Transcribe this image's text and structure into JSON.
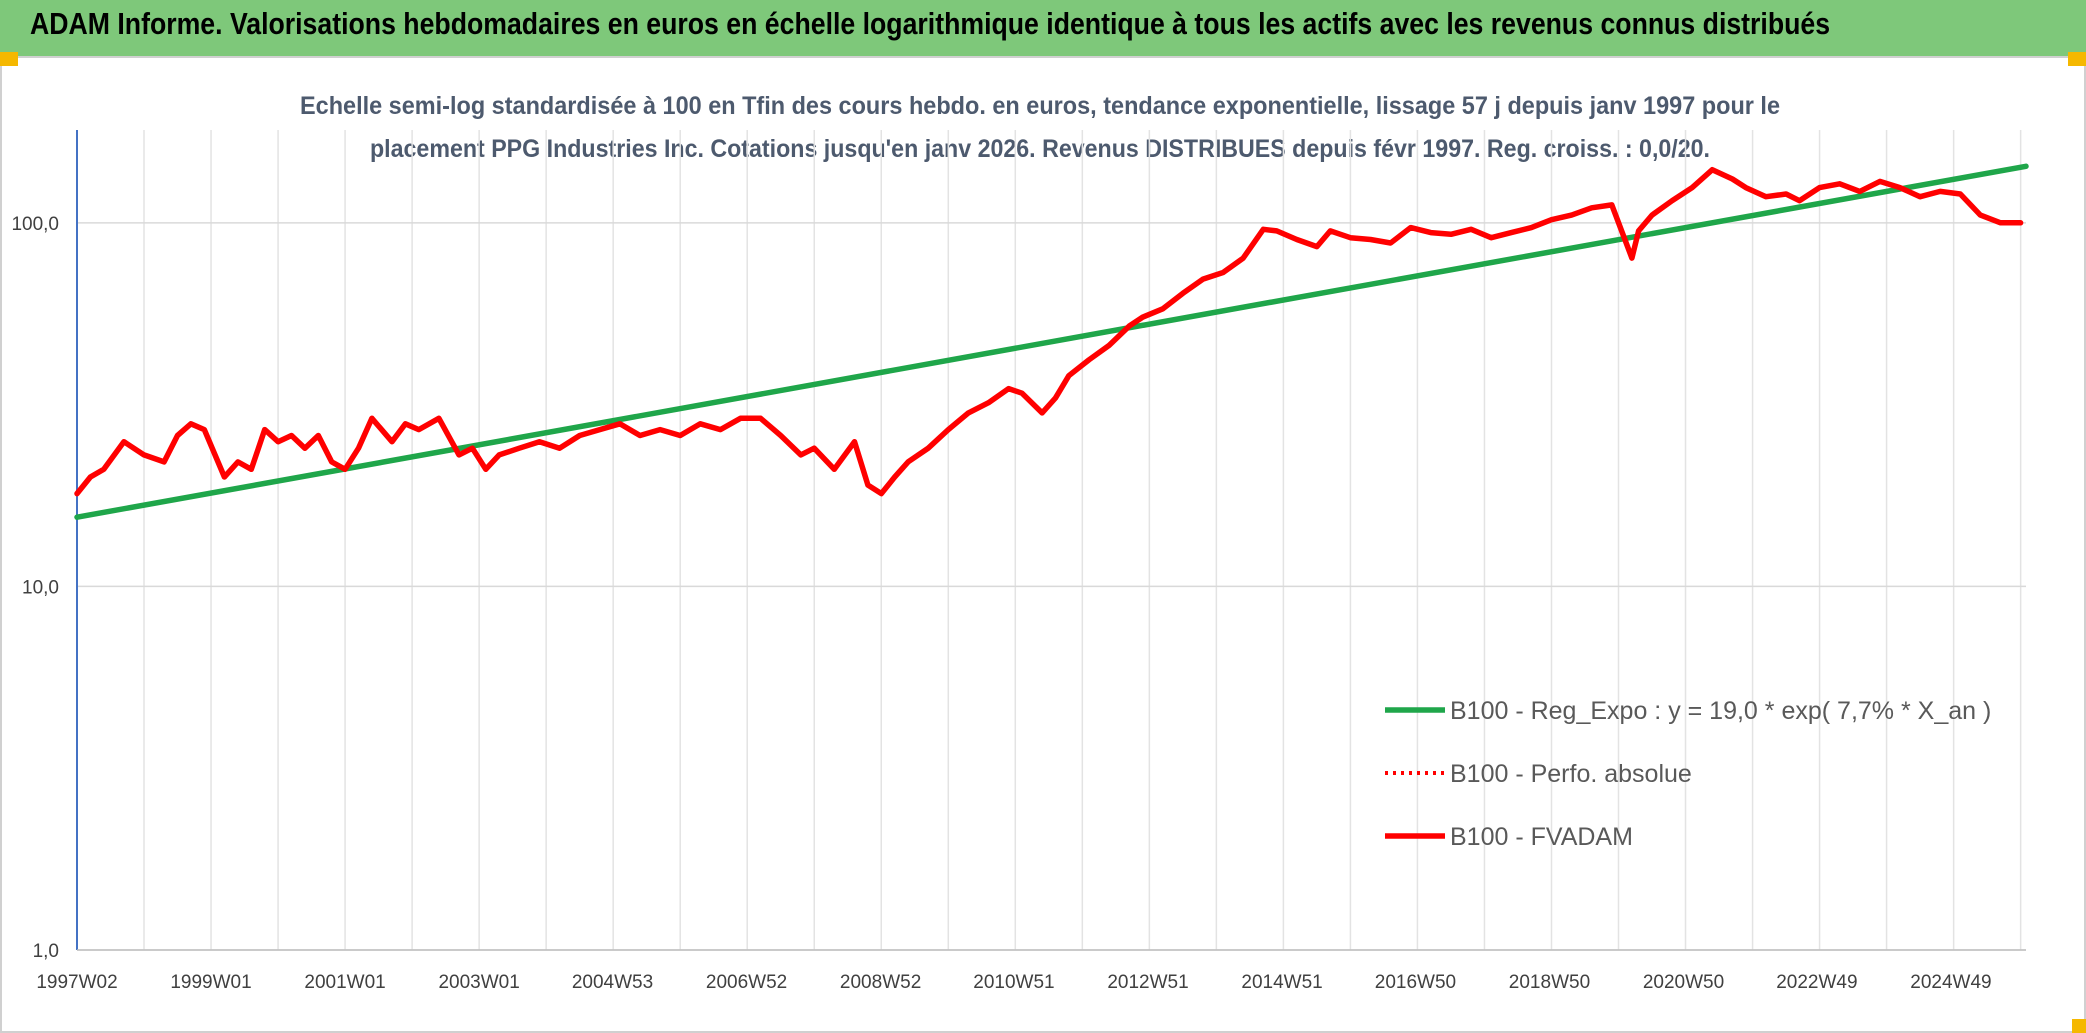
{
  "banner": {
    "title": "ADAM Informe. Valorisations hebdomadaires en euros en échelle logarithmique identique à tous les actifs avec les revenus connus distribués"
  },
  "chart_data": {
    "type": "line",
    "subtitle_lines": [
      "Echelle semi-log standardisée à 100 en Tfin des cours hebdo. en euros, tendance exponentielle, lissage 57 j depuis janv 1997 pour le",
      "placement PPG Industries Inc. Cotations jusqu'en janv 2026. Revenus DISTRIBUES depuis févr 1997. Reg. croiss. : 0,0/20."
    ],
    "y_scale": "log",
    "ylim": [
      1,
      180
    ],
    "y_ticks": [
      {
        "value": 1,
        "label": "1,0"
      },
      {
        "value": 10,
        "label": "10,0"
      },
      {
        "value": 100,
        "label": "100,0"
      }
    ],
    "xlim": [
      1997.0,
      2026.08
    ],
    "x_ticks": [
      {
        "value": 1997.0,
        "label": "1997W02"
      },
      {
        "value": 1999.0,
        "label": "1999W01"
      },
      {
        "value": 2001.0,
        "label": "2001W01"
      },
      {
        "value": 2003.0,
        "label": "2003W01"
      },
      {
        "value": 2004.99,
        "label": "2004W53"
      },
      {
        "value": 2006.99,
        "label": "2006W52"
      },
      {
        "value": 2008.99,
        "label": "2008W52"
      },
      {
        "value": 2010.98,
        "label": "2010W51"
      },
      {
        "value": 2012.98,
        "label": "2012W51"
      },
      {
        "value": 2014.98,
        "label": "2014W51"
      },
      {
        "value": 2016.97,
        "label": "2016W50"
      },
      {
        "value": 2018.97,
        "label": "2018W50"
      },
      {
        "value": 2020.97,
        "label": "2020W50"
      },
      {
        "value": 2022.96,
        "label": "2022W49"
      },
      {
        "value": 2024.96,
        "label": "2024W49"
      }
    ],
    "grid": true,
    "legend_position": "bottom-right",
    "series": [
      {
        "name": "B100 - Reg_Expo : y = 19,0 * exp( 7,7% *  X_an )",
        "color": "#1fa64a",
        "style": "solid",
        "x": [
          1997.0,
          2026.08
        ],
        "y": [
          15.5,
          143
        ]
      },
      {
        "name": "B100 - Perfo. absolue",
        "color": "#ff0000",
        "style": "dotted",
        "x": [],
        "y": []
      },
      {
        "name": "B100 - FVADAM",
        "color": "#ff0000",
        "style": "solid",
        "x": [
          1997.0,
          1997.2,
          1997.4,
          1997.7,
          1998.0,
          1998.3,
          1998.5,
          1998.7,
          1998.9,
          1999.2,
          1999.4,
          1999.6,
          1999.8,
          2000.0,
          2000.2,
          2000.4,
          2000.6,
          2000.8,
          2001.0,
          2001.2,
          2001.4,
          2001.7,
          2001.9,
          2002.1,
          2002.4,
          2002.7,
          2002.9,
          2003.1,
          2003.3,
          2003.6,
          2003.9,
          2004.2,
          2004.5,
          2004.8,
          2005.1,
          2005.4,
          2005.7,
          2006.0,
          2006.3,
          2006.6,
          2006.9,
          2007.2,
          2007.5,
          2007.8,
          2008.0,
          2008.3,
          2008.6,
          2008.8,
          2009.0,
          2009.2,
          2009.4,
          2009.7,
          2010.0,
          2010.3,
          2010.6,
          2010.9,
          2011.1,
          2011.4,
          2011.6,
          2011.8,
          2012.1,
          2012.4,
          2012.7,
          2012.9,
          2013.2,
          2013.5,
          2013.8,
          2014.1,
          2014.4,
          2014.7,
          2014.9,
          2015.2,
          2015.5,
          2015.7,
          2016.0,
          2016.3,
          2016.6,
          2016.9,
          2017.2,
          2017.5,
          2017.8,
          2018.1,
          2018.4,
          2018.7,
          2019.0,
          2019.3,
          2019.6,
          2019.9,
          2020.2,
          2020.3,
          2020.5,
          2020.8,
          2021.1,
          2021.4,
          2021.7,
          2021.9,
          2022.2,
          2022.5,
          2022.7,
          2023.0,
          2023.3,
          2023.6,
          2023.9,
          2024.2,
          2024.5,
          2024.8,
          2025.1,
          2025.4,
          2025.7,
          2026.0
        ],
        "y": [
          18,
          20,
          21,
          25,
          23,
          22,
          26,
          28,
          27,
          20,
          22,
          21,
          27,
          25,
          26,
          24,
          26,
          22,
          21,
          24,
          29,
          25,
          28,
          27,
          29,
          23,
          24,
          21,
          23,
          24,
          25,
          24,
          26,
          27,
          28,
          26,
          27,
          26,
          28,
          27,
          29,
          29,
          26,
          23,
          24,
          21,
          25,
          19,
          18,
          20,
          22,
          24,
          27,
          30,
          32,
          35,
          34,
          30,
          33,
          38,
          42,
          46,
          52,
          55,
          58,
          64,
          70,
          73,
          80,
          96,
          95,
          90,
          86,
          95,
          91,
          90,
          88,
          97,
          94,
          93,
          96,
          91,
          94,
          97,
          102,
          105,
          110,
          112,
          80,
          95,
          105,
          115,
          125,
          140,
          132,
          125,
          118,
          120,
          115,
          125,
          128,
          122,
          130,
          125,
          118,
          122,
          120,
          105,
          100,
          100
        ]
      }
    ]
  }
}
